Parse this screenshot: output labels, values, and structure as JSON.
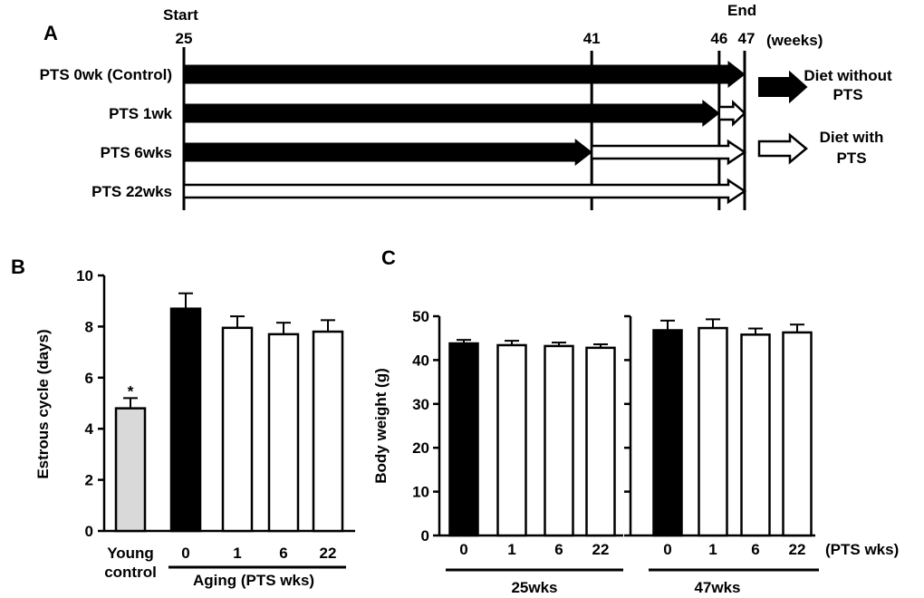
{
  "colors": {
    "ink": "#000000",
    "white": "#ffffff",
    "young": "#d9d9d9"
  },
  "panel_a": {
    "panel_label": "A",
    "start_label": "Start",
    "end_label": "End",
    "unit_label": "(weeks)",
    "markers": [
      {
        "week": 25,
        "label": "25"
      },
      {
        "week": 41,
        "label": "41"
      },
      {
        "week": 46,
        "label": "46"
      },
      {
        "week": 47,
        "label": "47"
      }
    ],
    "rows": [
      {
        "label": "PTS 0wk (Control)",
        "without_pts": [
          25,
          47
        ],
        "with_pts": null
      },
      {
        "label": "PTS 1wk",
        "without_pts": [
          25,
          46
        ],
        "with_pts": [
          46,
          47
        ]
      },
      {
        "label": "PTS 6wks",
        "without_pts": [
          25,
          41
        ],
        "with_pts": [
          41,
          47
        ]
      },
      {
        "label": "PTS 22wks",
        "without_pts": null,
        "with_pts": [
          25,
          47
        ]
      }
    ],
    "legend": {
      "without_line1": "Diet without",
      "without_line2": "PTS",
      "with_line1": "Diet with",
      "with_line2": "PTS"
    }
  },
  "chart_data": [
    {
      "type": "bar",
      "panel": "B",
      "ylabel": "Estrous cycle (days)",
      "ylim": [
        0,
        10
      ],
      "yticks": [
        0,
        2,
        4,
        6,
        8,
        10
      ],
      "categories": [
        "Young control",
        "0",
        "1",
        "6",
        "22"
      ],
      "category_lines": [
        [
          "Young",
          "control"
        ],
        [
          "0"
        ],
        [
          "1"
        ],
        [
          "6"
        ],
        [
          "22"
        ]
      ],
      "values": [
        4.8,
        8.7,
        7.95,
        7.7,
        7.8
      ],
      "errors": [
        0.4,
        0.6,
        0.45,
        0.45,
        0.45
      ],
      "fills": [
        "young",
        "ink",
        "white",
        "white",
        "white"
      ],
      "annotations": [
        {
          "bar": 0,
          "text": "*"
        }
      ],
      "group_label": "Aging (PTS wks)"
    },
    {
      "type": "bar",
      "panel": "C",
      "ylabel": "Body weight (g)",
      "ylim": [
        0,
        50
      ],
      "yticks": [
        0,
        10,
        20,
        30,
        40,
        50
      ],
      "subpanels": [
        {
          "categories": [
            "0",
            "1",
            "6",
            "22"
          ],
          "values": [
            43.8,
            43.4,
            43.2,
            42.8
          ],
          "errors": [
            0.8,
            1.0,
            0.8,
            0.8
          ],
          "fills": [
            "ink",
            "white",
            "white",
            "white"
          ],
          "group_label": "25wks"
        },
        {
          "categories": [
            "0",
            "1",
            "6",
            "22"
          ],
          "values": [
            46.8,
            47.3,
            45.8,
            46.3
          ],
          "errors": [
            2.2,
            2.0,
            1.4,
            1.8
          ],
          "fills": [
            "ink",
            "white",
            "white",
            "white"
          ],
          "group_label": "47wks"
        }
      ],
      "xlabel": "(PTS wks)"
    }
  ]
}
